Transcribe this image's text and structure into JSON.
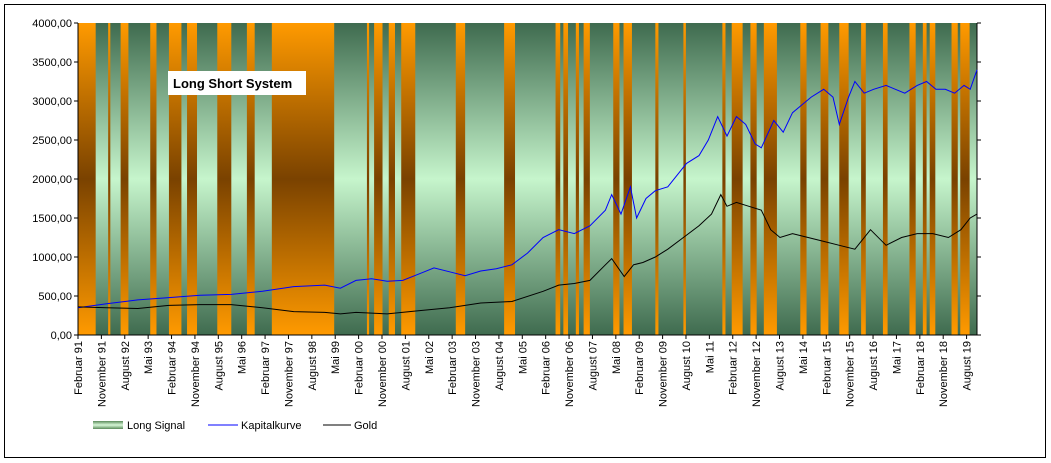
{
  "chart_data": {
    "type": "line",
    "title": "Long Short System",
    "ylim": [
      0,
      4000
    ],
    "y_ticks": [
      "0,00",
      "500,00",
      "1000,00",
      "1500,00",
      "2000,00",
      "2500,00",
      "3000,00",
      "3500,00",
      "4000,00"
    ],
    "x_range": [
      1991.083,
      2019.917
    ],
    "x_ticks": [
      {
        "label": "Februar 91",
        "t": 1991.083
      },
      {
        "label": "November 91",
        "t": 1991.833
      },
      {
        "label": "August 92",
        "t": 1992.583
      },
      {
        "label": "Mai 93",
        "t": 1993.333
      },
      {
        "label": "Februar 94",
        "t": 1994.083
      },
      {
        "label": "November 94",
        "t": 1994.833
      },
      {
        "label": "August 95",
        "t": 1995.583
      },
      {
        "label": "Mai 96",
        "t": 1996.333
      },
      {
        "label": "Februar 97",
        "t": 1997.083
      },
      {
        "label": "November 97",
        "t": 1997.833
      },
      {
        "label": "August 98",
        "t": 1998.583
      },
      {
        "label": "Mai 99",
        "t": 1999.333
      },
      {
        "label": "Februar 00",
        "t": 2000.083
      },
      {
        "label": "November 00",
        "t": 2000.833
      },
      {
        "label": "August 01",
        "t": 2001.583
      },
      {
        "label": "Mai 02",
        "t": 2002.333
      },
      {
        "label": "Februar 03",
        "t": 2003.083
      },
      {
        "label": "November 03",
        "t": 2003.833
      },
      {
        "label": "August 04",
        "t": 2004.583
      },
      {
        "label": "Mai 05",
        "t": 2005.333
      },
      {
        "label": "Februar 06",
        "t": 2006.083
      },
      {
        "label": "November 06",
        "t": 2006.833
      },
      {
        "label": "August 07",
        "t": 2007.583
      },
      {
        "label": "Mai 08",
        "t": 2008.333
      },
      {
        "label": "Februar 09",
        "t": 2009.083
      },
      {
        "label": "November 09",
        "t": 2009.833
      },
      {
        "label": "August 10",
        "t": 2010.583
      },
      {
        "label": "Mai 11",
        "t": 2011.333
      },
      {
        "label": "Februar 12",
        "t": 2012.083
      },
      {
        "label": "November 12",
        "t": 2012.833
      },
      {
        "label": "August 13",
        "t": 2013.583
      },
      {
        "label": "Mai 14",
        "t": 2014.333
      },
      {
        "label": "Februar 15",
        "t": 2015.083
      },
      {
        "label": "November 15",
        "t": 2015.833
      },
      {
        "label": "August 16",
        "t": 2016.583
      },
      {
        "label": "Mai 17",
        "t": 2017.333
      },
      {
        "label": "Februar 18",
        "t": 2018.083
      },
      {
        "label": "November 18",
        "t": 2018.833
      },
      {
        "label": "August 19",
        "t": 2019.583
      }
    ],
    "long_signal_periods": [
      [
        1991.65,
        1992.05
      ],
      [
        1992.12,
        1992.45
      ],
      [
        1992.7,
        1993.4
      ],
      [
        1993.6,
        1994.0
      ],
      [
        1994.4,
        1994.58
      ],
      [
        1994.9,
        1995.55
      ],
      [
        1996.0,
        1996.5
      ],
      [
        1996.75,
        1997.3
      ],
      [
        1999.3,
        2000.35
      ],
      [
        2000.42,
        2000.58
      ],
      [
        2000.85,
        2001.05
      ],
      [
        2001.25,
        2001.45
      ],
      [
        2001.9,
        2003.2
      ],
      [
        2003.5,
        2004.75
      ],
      [
        2005.1,
        2006.4
      ],
      [
        2006.55,
        2006.65
      ],
      [
        2006.8,
        2007.05
      ],
      [
        2007.15,
        2007.3
      ],
      [
        2007.5,
        2008.25
      ],
      [
        2008.45,
        2008.58
      ],
      [
        2008.85,
        2009.6
      ],
      [
        2009.7,
        2010.5
      ],
      [
        2010.58,
        2011.75
      ],
      [
        2011.85,
        2012.05
      ],
      [
        2012.4,
        2012.65
      ],
      [
        2012.85,
        2013.08
      ],
      [
        2013.5,
        2014.25
      ],
      [
        2014.45,
        2014.9
      ],
      [
        2015.15,
        2015.5
      ],
      [
        2015.8,
        2016.2
      ],
      [
        2016.35,
        2016.9
      ],
      [
        2017.05,
        2017.75
      ],
      [
        2017.95,
        2018.18
      ],
      [
        2018.3,
        2018.4
      ],
      [
        2018.58,
        2019.1
      ],
      [
        2019.3,
        2019.38
      ],
      [
        2019.68,
        2019.95
      ]
    ],
    "series": [
      {
        "name": "Long Signal",
        "color": "#a8d8a8",
        "values": []
      },
      {
        "name": "Kapitalkurve",
        "color": "#0000ff",
        "x": [
          1991.083,
          1992.0,
          1993.0,
          1994.0,
          1995.0,
          1996.0,
          1997.0,
          1998.0,
          1999.0,
          1999.5,
          2000.0,
          2000.5,
          2001.0,
          2001.5,
          2002.0,
          2002.5,
          2003.0,
          2003.5,
          2004.0,
          2004.5,
          2005.0,
          2005.5,
          2006.0,
          2006.5,
          2007.0,
          2007.5,
          2008.0,
          2008.2,
          2008.5,
          2008.8,
          2009.0,
          2009.3,
          2009.6,
          2010.0,
          2010.3,
          2010.6,
          2011.0,
          2011.3,
          2011.6,
          2011.9,
          2012.2,
          2012.5,
          2012.8,
          2013.0,
          2013.4,
          2013.7,
          2014.0,
          2014.3,
          2014.6,
          2015.0,
          2015.3,
          2015.5,
          2015.8,
          2016.0,
          2016.3,
          2016.6,
          2017.0,
          2017.3,
          2017.6,
          2018.0,
          2018.3,
          2018.6,
          2018.9,
          2019.2,
          2019.5,
          2019.7,
          2019.917
        ],
        "values": [
          350,
          400,
          450,
          480,
          510,
          520,
          560,
          620,
          640,
          600,
          700,
          720,
          690,
          700,
          780,
          860,
          810,
          760,
          820,
          850,
          900,
          1050,
          1250,
          1350,
          1300,
          1400,
          1600,
          1800,
          1550,
          1900,
          1500,
          1750,
          1850,
          1900,
          2050,
          2200,
          2300,
          2500,
          2800,
          2550,
          2800,
          2700,
          2450,
          2400,
          2750,
          2600,
          2850,
          2950,
          3050,
          3150,
          3050,
          2700,
          3050,
          3250,
          3100,
          3150,
          3200,
          3150,
          3100,
          3200,
          3250,
          3150,
          3150,
          3100,
          3200,
          3150,
          3400
        ]
      },
      {
        "name": "Gold",
        "color": "#000000",
        "x": [
          1991.083,
          1992.0,
          1993.0,
          1994.0,
          1995.0,
          1996.0,
          1997.0,
          1998.0,
          1999.0,
          1999.5,
          2000.0,
          2001.0,
          2002.0,
          2003.0,
          2004.0,
          2005.0,
          2006.0,
          2006.5,
          2007.0,
          2007.5,
          2008.0,
          2008.2,
          2008.6,
          2008.9,
          2009.2,
          2009.6,
          2010.0,
          2010.5,
          2011.0,
          2011.4,
          2011.7,
          2011.9,
          2012.2,
          2012.6,
          2013.0,
          2013.3,
          2013.6,
          2014.0,
          2014.5,
          2015.0,
          2015.5,
          2016.0,
          2016.5,
          2017.0,
          2017.5,
          2018.0,
          2018.5,
          2019.0,
          2019.4,
          2019.7,
          2019.917
        ],
        "values": [
          360,
          350,
          340,
          380,
          390,
          390,
          350,
          300,
          290,
          270,
          290,
          270,
          310,
          350,
          410,
          430,
          560,
          640,
          660,
          700,
          900,
          980,
          750,
          900,
          930,
          1000,
          1100,
          1250,
          1400,
          1550,
          1800,
          1650,
          1700,
          1650,
          1600,
          1350,
          1250,
          1300,
          1250,
          1200,
          1150,
          1100,
          1350,
          1150,
          1250,
          1300,
          1300,
          1250,
          1350,
          1500,
          1550
        ]
      }
    ]
  }
}
